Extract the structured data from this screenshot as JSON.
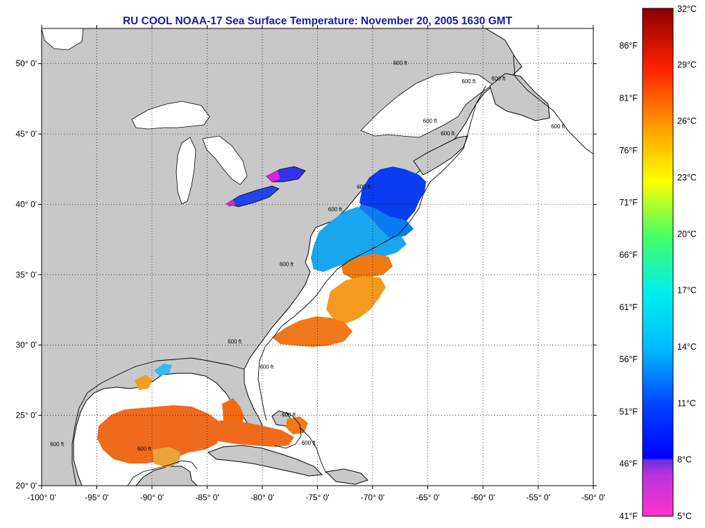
{
  "title": "RU COOL  NOAA-17  Sea Surface Temperature:  November 20, 2005 1630 GMT",
  "map": {
    "lon_range": [
      -100,
      -50
    ],
    "lat_range": [
      20,
      52.5
    ],
    "lon_ticks": [
      {
        "value": -100,
        "label": "-100° 0'"
      },
      {
        "value": -95,
        "label": "-95° 0'"
      },
      {
        "value": -90,
        "label": "-90° 0'"
      },
      {
        "value": -85,
        "label": "-85° 0'"
      },
      {
        "value": -80,
        "label": "-80° 0'"
      },
      {
        "value": -75,
        "label": "-75° 0'"
      },
      {
        "value": -70,
        "label": "-70° 0'"
      },
      {
        "value": -65,
        "label": "-65° 0'"
      },
      {
        "value": -60,
        "label": "-60° 0'"
      },
      {
        "value": -55,
        "label": "-55° 0'"
      },
      {
        "value": -50,
        "label": "-50° 0'"
      }
    ],
    "lat_ticks": [
      {
        "value": 20,
        "label": "20° 0'"
      },
      {
        "value": 25,
        "label": "25° 0'"
      },
      {
        "value": 30,
        "label": "30° 0'"
      },
      {
        "value": 35,
        "label": "35° 0'"
      },
      {
        "value": 40,
        "label": "40° 0'"
      },
      {
        "value": 45,
        "label": "45° 0'"
      },
      {
        "value": 50,
        "label": "50° 0'"
      }
    ],
    "grid": "dotted",
    "land_color": "#c8c8c8",
    "contour_label": "600 ft",
    "contour_labels": [
      {
        "lon": -67.5,
        "lat": 49.9
      },
      {
        "lon": -61.3,
        "lat": 48.6
      },
      {
        "lon": -58.6,
        "lat": 48.8
      },
      {
        "lon": -64.8,
        "lat": 45.8
      },
      {
        "lon": -63.2,
        "lat": 44.9
      },
      {
        "lon": -53.2,
        "lat": 45.4
      },
      {
        "lon": -70.8,
        "lat": 41.1
      },
      {
        "lon": -73.4,
        "lat": 39.5
      },
      {
        "lon": -77.8,
        "lat": 35.6
      },
      {
        "lon": -82.5,
        "lat": 30.1
      },
      {
        "lon": -79.6,
        "lat": 28.3
      },
      {
        "lon": -77.6,
        "lat": 24.9
      },
      {
        "lon": -75.8,
        "lat": 22.9
      },
      {
        "lon": -90.7,
        "lat": 22.5
      },
      {
        "lon": -98.6,
        "lat": 22.8
      }
    ]
  },
  "colorbar": {
    "range_c": [
      5,
      32
    ],
    "stops": [
      "#ff33cc",
      "#8833cc",
      "#0000ff",
      "#0099ff",
      "#00eeee",
      "#33ff66",
      "#ffff00",
      "#ff9900",
      "#ff2200",
      "#8b0000"
    ],
    "celsius_labels": [
      "5°C",
      "8°C",
      "11°C",
      "14°C",
      "17°C",
      "20°C",
      "23°C",
      "26°C",
      "29°C",
      "32°C"
    ],
    "fahrenheit_labels": [
      "41°F",
      "46°F",
      "51°F",
      "56°F",
      "61°F",
      "66°F",
      "71°F",
      "76°F",
      "81°F",
      "86°F"
    ]
  }
}
